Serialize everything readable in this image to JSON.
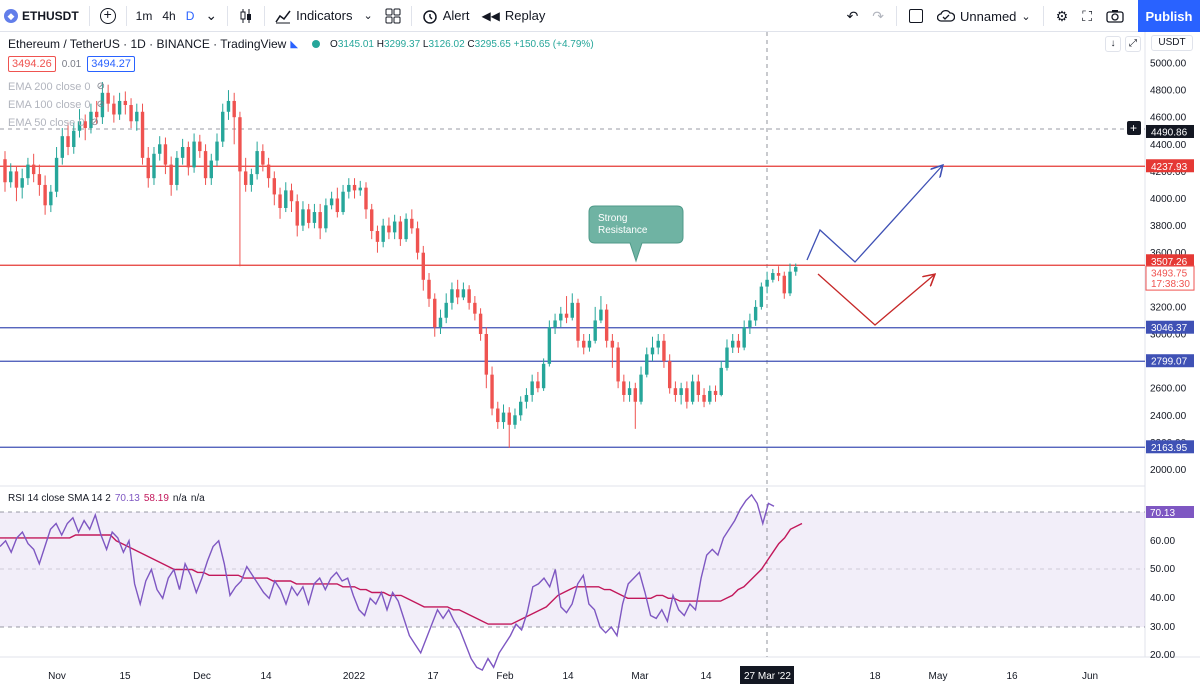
{
  "toolbar": {
    "symbol": "ETHUSDT",
    "intervals": [
      "1m",
      "4h",
      "D"
    ],
    "indicators_label": "Indicators",
    "alert_label": "Alert",
    "replay_label": "Replay",
    "layout_name": "Unnamed",
    "publish_label": "Publish"
  },
  "legend": {
    "title": "Ethereum / TetherUS · 1D · BINANCE · TradingView",
    "ohlc": {
      "o_label": "O",
      "o": "3145.01",
      "h_label": "H",
      "h": "3299.37",
      "l_label": "L",
      "l": "3126.02",
      "c_label": "C",
      "c": "3295.65",
      "change": "+150.65 (+4.79%)"
    },
    "sell_price": "3494.26",
    "spread": "0.01",
    "buy_price": "3494.27",
    "ema_200": "EMA 200 close 0",
    "ema_100": "EMA 100 close 0",
    "ema_50": "EMA 50 close 0"
  },
  "currency": "USDT",
  "rsi_legend": {
    "label": "RSI 14 close SMA 14 2",
    "rsi_value": "70.13",
    "sma_value": "58.19",
    "na1": "n/a",
    "na2": "n/a"
  },
  "colors": {
    "up": "#26a69a",
    "down": "#ef5350",
    "resistance": "#e53935",
    "support": "#3f51b5",
    "rsi": "#7e57c2",
    "rsi_sma": "#c2185b",
    "accent": "#2962ff"
  },
  "chart_data": {
    "type": "candlestick",
    "title": "Ethereum / TetherUS, 1D, BINANCE",
    "price_axis": {
      "ticks": [
        2000,
        2200,
        2400,
        2600,
        2800,
        3000,
        3200,
        3400,
        3600,
        3800,
        4000,
        4200,
        4400,
        4600,
        4800,
        5000
      ]
    },
    "time_axis": {
      "labels": [
        "Nov",
        "15",
        "Dec",
        "14",
        "2022",
        "17",
        "Feb",
        "14",
        "Mar",
        "14",
        "18",
        "May",
        "16",
        "Jun"
      ],
      "crosshair_label": "27 Mar '22"
    },
    "price_labels": [
      {
        "value": "4490.86",
        "kind": "crosshair"
      },
      {
        "value": "4237.93",
        "kind": "resistance"
      },
      {
        "value": "3507.26",
        "kind": "resistance"
      },
      {
        "value": "3493.75",
        "kind": "last",
        "countdown": "17:38:30"
      },
      {
        "value": "3046.37",
        "kind": "support"
      },
      {
        "value": "2799.07",
        "kind": "support"
      },
      {
        "value": "2163.95",
        "kind": "support"
      }
    ],
    "horizontal_lines": [
      {
        "price": 4237.93,
        "color": "red"
      },
      {
        "price": 3507.26,
        "color": "red"
      },
      {
        "price": 3046.37,
        "color": "blue"
      },
      {
        "price": 2799.07,
        "color": "blue"
      },
      {
        "price": 2163.95,
        "color": "blue"
      }
    ],
    "annotation": {
      "text_line1": "Strong",
      "text_line2": "Resistance"
    },
    "candles": [
      [
        4290,
        4120,
        4350,
        4050
      ],
      [
        4120,
        4200,
        4260,
        4080
      ],
      [
        4200,
        4080,
        4240,
        3980
      ],
      [
        4080,
        4150,
        4220,
        4000
      ],
      [
        4150,
        4250,
        4300,
        4100
      ],
      [
        4250,
        4180,
        4330,
        4120
      ],
      [
        4180,
        4100,
        4250,
        4020
      ],
      [
        4100,
        3950,
        4170,
        3880
      ],
      [
        3950,
        4050,
        4100,
        3900
      ],
      [
        4050,
        4300,
        4380,
        4010
      ],
      [
        4300,
        4460,
        4520,
        4250
      ],
      [
        4460,
        4380,
        4560,
        4320
      ],
      [
        4380,
        4500,
        4560,
        4330
      ],
      [
        4500,
        4570,
        4660,
        4450
      ],
      [
        4570,
        4520,
        4620,
        4430
      ],
      [
        4520,
        4640,
        4700,
        4480
      ],
      [
        4640,
        4600,
        4720,
        4550
      ],
      [
        4600,
        4780,
        4860,
        4550
      ],
      [
        4780,
        4700,
        4840,
        4640
      ],
      [
        4700,
        4620,
        4760,
        4560
      ],
      [
        4620,
        4720,
        4780,
        4580
      ],
      [
        4720,
        4690,
        4790,
        4620
      ],
      [
        4690,
        4570,
        4740,
        4520
      ],
      [
        4570,
        4640,
        4700,
        4500
      ],
      [
        4640,
        4300,
        4700,
        4250
      ],
      [
        4300,
        4150,
        4380,
        4080
      ],
      [
        4150,
        4330,
        4380,
        4100
      ],
      [
        4330,
        4400,
        4460,
        4280
      ],
      [
        4400,
        4250,
        4450,
        4180
      ],
      [
        4250,
        4100,
        4310,
        4020
      ],
      [
        4100,
        4300,
        4350,
        4060
      ],
      [
        4300,
        4380,
        4440,
        4250
      ],
      [
        4380,
        4230,
        4420,
        4170
      ],
      [
        4230,
        4420,
        4480,
        4190
      ],
      [
        4420,
        4350,
        4470,
        4300
      ],
      [
        4350,
        4150,
        4400,
        4100
      ],
      [
        4150,
        4280,
        4330,
        4100
      ],
      [
        4280,
        4420,
        4480,
        4240
      ],
      [
        4420,
        4640,
        4700,
        4380
      ],
      [
        4640,
        4720,
        4800,
        4580
      ],
      [
        4720,
        4600,
        4780,
        4400
      ],
      [
        4600,
        4200,
        4640,
        3500
      ],
      [
        4200,
        4100,
        4300,
        4050
      ],
      [
        4100,
        4180,
        4220,
        4050
      ],
      [
        4180,
        4350,
        4420,
        4140
      ],
      [
        4350,
        4250,
        4400,
        4200
      ],
      [
        4250,
        4150,
        4300,
        4080
      ],
      [
        4150,
        4030,
        4200,
        3950
      ],
      [
        4030,
        3930,
        4080,
        3850
      ],
      [
        3930,
        4060,
        4120,
        3900
      ],
      [
        4060,
        3980,
        4110,
        3900
      ],
      [
        3980,
        3800,
        4030,
        3720
      ],
      [
        3800,
        3920,
        3980,
        3760
      ],
      [
        3920,
        3820,
        3960,
        3780
      ],
      [
        3820,
        3900,
        3960,
        3780
      ],
      [
        3900,
        3780,
        3960,
        3700
      ],
      [
        3780,
        3950,
        4000,
        3750
      ],
      [
        3950,
        4000,
        4050,
        3920
      ],
      [
        4000,
        3900,
        4080,
        3860
      ],
      [
        3900,
        4050,
        4100,
        3880
      ],
      [
        4050,
        4100,
        4150,
        4000
      ],
      [
        4100,
        4060,
        4150,
        4000
      ],
      [
        4060,
        4080,
        4130,
        4020
      ],
      [
        4080,
        3920,
        4120,
        3850
      ],
      [
        3920,
        3760,
        3960,
        3700
      ],
      [
        3760,
        3680,
        3800,
        3600
      ],
      [
        3680,
        3800,
        3850,
        3640
      ],
      [
        3800,
        3750,
        3860,
        3700
      ],
      [
        3750,
        3830,
        3880,
        3700
      ],
      [
        3830,
        3700,
        3870,
        3650
      ],
      [
        3700,
        3850,
        3890,
        3680
      ],
      [
        3850,
        3780,
        3920,
        3740
      ],
      [
        3780,
        3600,
        3830,
        3550
      ],
      [
        3600,
        3400,
        3650,
        3320
      ],
      [
        3400,
        3260,
        3450,
        3200
      ],
      [
        3260,
        3050,
        3300,
        2980
      ],
      [
        3050,
        3120,
        3180,
        3000
      ],
      [
        3120,
        3230,
        3300,
        3080
      ],
      [
        3230,
        3330,
        3380,
        3180
      ],
      [
        3330,
        3270,
        3400,
        3220
      ],
      [
        3270,
        3330,
        3380,
        3250
      ],
      [
        3330,
        3230,
        3360,
        3180
      ],
      [
        3230,
        3150,
        3280,
        3100
      ],
      [
        3150,
        3000,
        3190,
        2950
      ],
      [
        3000,
        2700,
        3050,
        2600
      ],
      [
        2700,
        2450,
        2760,
        2400
      ],
      [
        2450,
        2350,
        2500,
        2300
      ],
      [
        2350,
        2420,
        2480,
        2300
      ],
      [
        2420,
        2330,
        2460,
        2160
      ],
      [
        2330,
        2400,
        2450,
        2300
      ],
      [
        2400,
        2500,
        2540,
        2360
      ],
      [
        2500,
        2550,
        2600,
        2450
      ],
      [
        2550,
        2650,
        2700,
        2500
      ],
      [
        2650,
        2600,
        2720,
        2570
      ],
      [
        2600,
        2780,
        2820,
        2580
      ],
      [
        2780,
        3050,
        3100,
        2760
      ],
      [
        3050,
        3100,
        3150,
        3000
      ],
      [
        3100,
        3150,
        3200,
        3050
      ],
      [
        3150,
        3120,
        3280,
        3080
      ],
      [
        3120,
        3230,
        3300,
        3100
      ],
      [
        3230,
        2950,
        3260,
        2900
      ],
      [
        2950,
        2900,
        3000,
        2850
      ],
      [
        2900,
        2950,
        3000,
        2870
      ],
      [
        2950,
        3100,
        3200,
        2930
      ],
      [
        3100,
        3180,
        3280,
        3080
      ],
      [
        3180,
        2950,
        3220,
        2900
      ],
      [
        2950,
        2900,
        3000,
        2750
      ],
      [
        2900,
        2650,
        2940,
        2600
      ],
      [
        2650,
        2550,
        2700,
        2500
      ],
      [
        2550,
        2600,
        2650,
        2500
      ],
      [
        2600,
        2500,
        2640,
        2300
      ],
      [
        2500,
        2700,
        2760,
        2480
      ],
      [
        2700,
        2850,
        2900,
        2680
      ],
      [
        2850,
        2900,
        2980,
        2800
      ],
      [
        2900,
        2950,
        3000,
        2850
      ],
      [
        2950,
        2800,
        3000,
        2750
      ],
      [
        2800,
        2600,
        2850,
        2560
      ],
      [
        2600,
        2550,
        2650,
        2500
      ],
      [
        2550,
        2600,
        2640,
        2480
      ],
      [
        2600,
        2500,
        2650,
        2450
      ],
      [
        2500,
        2650,
        2700,
        2480
      ],
      [
        2650,
        2550,
        2700,
        2500
      ],
      [
        2550,
        2500,
        2600,
        2460
      ],
      [
        2500,
        2580,
        2620,
        2480
      ],
      [
        2580,
        2550,
        2620,
        2500
      ],
      [
        2550,
        2750,
        2800,
        2540
      ],
      [
        2750,
        2900,
        2960,
        2730
      ],
      [
        2900,
        2950,
        3000,
        2860
      ],
      [
        2950,
        2900,
        3000,
        2860
      ],
      [
        2900,
        3050,
        3100,
        2880
      ],
      [
        3050,
        3100,
        3150,
        3000
      ],
      [
        3100,
        3200,
        3250,
        3060
      ],
      [
        3200,
        3350,
        3380,
        3180
      ],
      [
        3350,
        3400,
        3460,
        3300
      ],
      [
        3400,
        3450,
        3480,
        3380
      ],
      [
        3450,
        3430,
        3500,
        3390
      ],
      [
        3430,
        3300,
        3460,
        3260
      ],
      [
        3300,
        3460,
        3520,
        3280
      ],
      [
        3460,
        3495,
        3520,
        3430
      ]
    ],
    "rsi": [
      58,
      60,
      56,
      61,
      63,
      59,
      57,
      52,
      58,
      64,
      66,
      62,
      66,
      68,
      63,
      67,
      64,
      69,
      62,
      57,
      63,
      61,
      56,
      60,
      45,
      38,
      46,
      50,
      43,
      40,
      47,
      50,
      43,
      52,
      48,
      42,
      47,
      53,
      58,
      60,
      52,
      41,
      44,
      46,
      51,
      48,
      45,
      42,
      40,
      46,
      43,
      38,
      44,
      41,
      44,
      38,
      45,
      47,
      43,
      47,
      49,
      46,
      47,
      41,
      36,
      34,
      40,
      38,
      42,
      36,
      42,
      39,
      33,
      27,
      24,
      21,
      26,
      31,
      36,
      33,
      36,
      32,
      29,
      24,
      19,
      16,
      15,
      19,
      16,
      21,
      24,
      27,
      31,
      29,
      35,
      44,
      45,
      47,
      44,
      50,
      37,
      35,
      38,
      45,
      48,
      38,
      36,
      30,
      28,
      30,
      27,
      38,
      45,
      47,
      49,
      42,
      34,
      33,
      36,
      32,
      41,
      36,
      34,
      38,
      36,
      47,
      55,
      57,
      55,
      61,
      64,
      67,
      71,
      74,
      76,
      73,
      66,
      73,
      72
    ],
    "rsi_sma": [
      61,
      61,
      61,
      61,
      61,
      61,
      61,
      61,
      61,
      61,
      61,
      61,
      61,
      62,
      62,
      62,
      62,
      62,
      62,
      62,
      60,
      59,
      58,
      57,
      56,
      55,
      54,
      53,
      52,
      51,
      50,
      50,
      50,
      50,
      49,
      49,
      48,
      48,
      48,
      48,
      48,
      48,
      47,
      47,
      47,
      47,
      47,
      46,
      46,
      46,
      46,
      45,
      45,
      45,
      45,
      45,
      45,
      45,
      45,
      44,
      44,
      44,
      43,
      43,
      42,
      42,
      42,
      41,
      41,
      41,
      40,
      39,
      38,
      37,
      37,
      37,
      37,
      37,
      36,
      36,
      35,
      34,
      33,
      32,
      31,
      31,
      31,
      31,
      31,
      32,
      33,
      34,
      35,
      36,
      37,
      39,
      41,
      42,
      43,
      44,
      44,
      44,
      44,
      44,
      43,
      43,
      42,
      41,
      40,
      40,
      40,
      40,
      40,
      41,
      41,
      40,
      40,
      39,
      39,
      39,
      39,
      39,
      39,
      39,
      39,
      40,
      41,
      43,
      44,
      46,
      48,
      50,
      53,
      56,
      59,
      61,
      64,
      65,
      66
    ]
  }
}
